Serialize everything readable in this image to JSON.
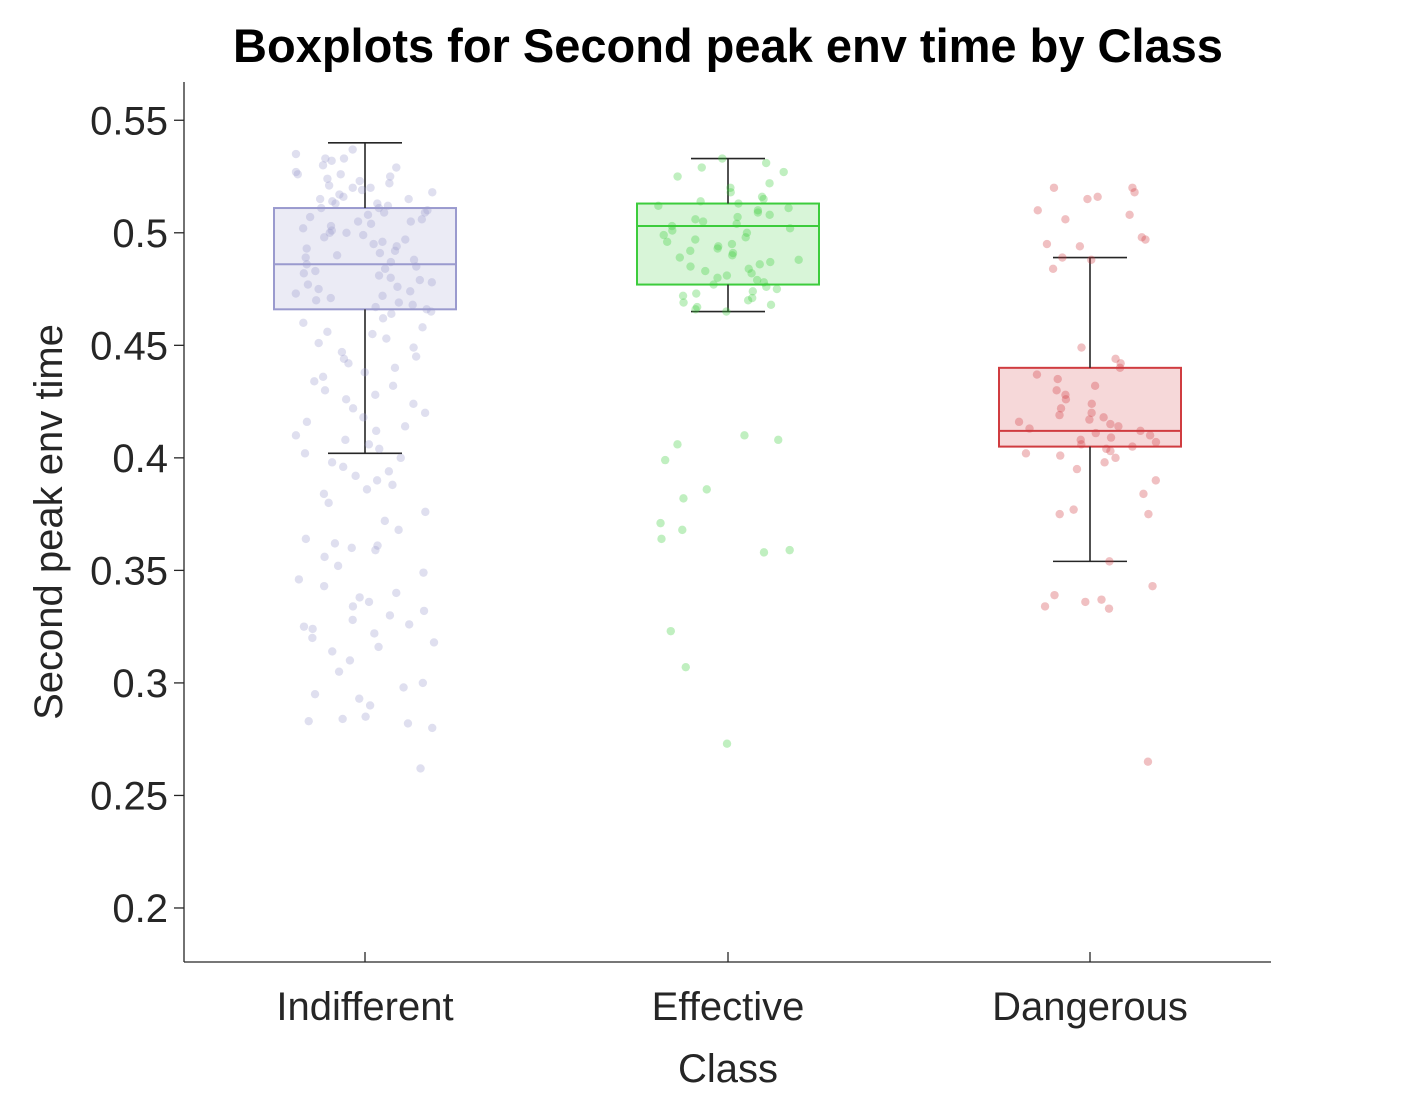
{
  "chart_data": {
    "type": "box",
    "title": "Boxplots for Second peak env time by Class",
    "xlabel": "Class",
    "ylabel": "Second peak env time",
    "categories": [
      "Indifferent",
      "Effective",
      "Dangerous"
    ],
    "ylim": [
      0.176,
      0.567
    ],
    "yticks": [
      0.2,
      0.25,
      0.3,
      0.35,
      0.4,
      0.45,
      0.5,
      0.55
    ],
    "ytick_labels": [
      "0.2",
      "0.25",
      "0.3",
      "0.35",
      "0.4",
      "0.45",
      "0.5",
      "0.55"
    ],
    "grid": false,
    "series": [
      {
        "category": "Indifferent",
        "color": "#9a9ace",
        "q1": 0.466,
        "median": 0.486,
        "q3": 0.511,
        "whisker_low": 0.402,
        "whisker_high": 0.54,
        "points": [
          0.537,
          0.535,
          0.533,
          0.533,
          0.532,
          0.53,
          0.529,
          0.527,
          0.526,
          0.526,
          0.525,
          0.524,
          0.523,
          0.522,
          0.521,
          0.52,
          0.52,
          0.519,
          0.518,
          0.517,
          0.516,
          0.515,
          0.515,
          0.514,
          0.513,
          0.513,
          0.512,
          0.511,
          0.511,
          0.51,
          0.509,
          0.509,
          0.508,
          0.507,
          0.506,
          0.505,
          0.505,
          0.504,
          0.503,
          0.502,
          0.501,
          0.5,
          0.5,
          0.499,
          0.498,
          0.497,
          0.496,
          0.495,
          0.494,
          0.493,
          0.492,
          0.491,
          0.49,
          0.489,
          0.488,
          0.487,
          0.486,
          0.485,
          0.484,
          0.483,
          0.482,
          0.481,
          0.48,
          0.479,
          0.478,
          0.477,
          0.476,
          0.475,
          0.474,
          0.473,
          0.472,
          0.471,
          0.47,
          0.469,
          0.468,
          0.467,
          0.466,
          0.465,
          0.464,
          0.462,
          0.46,
          0.458,
          0.456,
          0.455,
          0.453,
          0.451,
          0.449,
          0.447,
          0.445,
          0.444,
          0.442,
          0.44,
          0.438,
          0.436,
          0.434,
          0.432,
          0.43,
          0.428,
          0.426,
          0.424,
          0.422,
          0.42,
          0.418,
          0.416,
          0.414,
          0.412,
          0.41,
          0.408,
          0.406,
          0.404,
          0.402,
          0.4,
          0.398,
          0.396,
          0.394,
          0.392,
          0.39,
          0.388,
          0.386,
          0.384,
          0.38,
          0.376,
          0.372,
          0.368,
          0.364,
          0.362,
          0.361,
          0.36,
          0.359,
          0.356,
          0.352,
          0.349,
          0.346,
          0.343,
          0.34,
          0.338,
          0.336,
          0.334,
          0.332,
          0.33,
          0.328,
          0.326,
          0.325,
          0.324,
          0.322,
          0.32,
          0.318,
          0.316,
          0.314,
          0.31,
          0.305,
          0.3,
          0.298,
          0.295,
          0.293,
          0.29,
          0.285,
          0.284,
          0.283,
          0.282,
          0.28,
          0.262
        ]
      },
      {
        "category": "Effective",
        "color": "#3ccc3c",
        "q1": 0.477,
        "median": 0.503,
        "q3": 0.513,
        "whisker_low": 0.465,
        "whisker_high": 0.533,
        "points": [
          0.533,
          0.531,
          0.529,
          0.527,
          0.525,
          0.522,
          0.52,
          0.518,
          0.516,
          0.515,
          0.514,
          0.513,
          0.512,
          0.511,
          0.51,
          0.509,
          0.508,
          0.507,
          0.506,
          0.505,
          0.504,
          0.503,
          0.502,
          0.501,
          0.5,
          0.499,
          0.498,
          0.497,
          0.496,
          0.495,
          0.494,
          0.493,
          0.492,
          0.491,
          0.49,
          0.489,
          0.488,
          0.487,
          0.486,
          0.485,
          0.484,
          0.483,
          0.482,
          0.481,
          0.48,
          0.479,
          0.478,
          0.477,
          0.476,
          0.475,
          0.474,
          0.473,
          0.472,
          0.471,
          0.47,
          0.469,
          0.468,
          0.467,
          0.466,
          0.465,
          0.41,
          0.408,
          0.406,
          0.399,
          0.386,
          0.382,
          0.371,
          0.368,
          0.364,
          0.359,
          0.358,
          0.323,
          0.307,
          0.273
        ]
      },
      {
        "category": "Dangerous",
        "color": "#d03c40",
        "q1": 0.405,
        "median": 0.412,
        "q3": 0.44,
        "whisker_low": 0.354,
        "whisker_high": 0.489,
        "points": [
          0.52,
          0.52,
          0.518,
          0.516,
          0.515,
          0.51,
          0.508,
          0.506,
          0.498,
          0.497,
          0.495,
          0.494,
          0.489,
          0.488,
          0.484,
          0.449,
          0.444,
          0.442,
          0.44,
          0.437,
          0.435,
          0.432,
          0.43,
          0.428,
          0.426,
          0.424,
          0.422,
          0.42,
          0.419,
          0.418,
          0.417,
          0.416,
          0.415,
          0.414,
          0.413,
          0.412,
          0.411,
          0.41,
          0.409,
          0.408,
          0.407,
          0.406,
          0.405,
          0.404,
          0.403,
          0.402,
          0.401,
          0.4,
          0.398,
          0.395,
          0.39,
          0.384,
          0.377,
          0.375,
          0.375,
          0.354,
          0.343,
          0.339,
          0.337,
          0.336,
          0.334,
          0.333,
          0.265
        ]
      }
    ]
  }
}
